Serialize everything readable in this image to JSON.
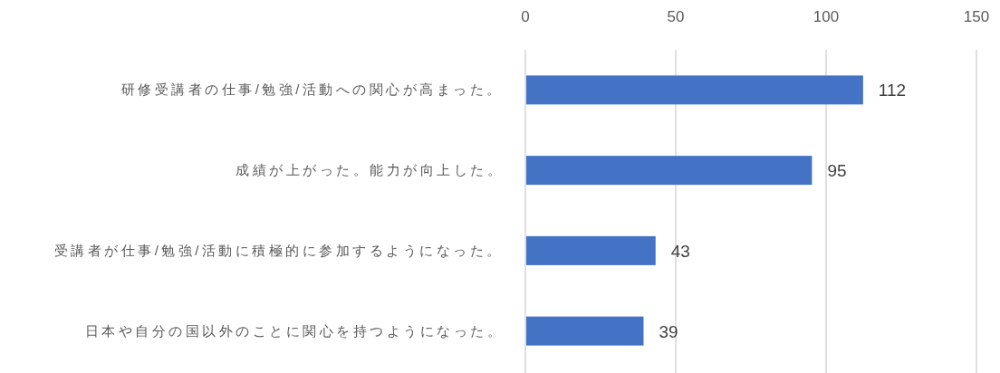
{
  "chart_data": {
    "type": "bar",
    "orientation": "horizontal",
    "categories": [
      "研修受講者の仕事/勉強/活動への関心が高まった。",
      "成績が上がった。能力が向上した。",
      "受講者が仕事/勉強/活動に積極的に参加するようになった。",
      "日本や自分の国以外のことに関心を持つようになった。"
    ],
    "values": [
      112,
      95,
      43,
      39
    ],
    "color": "#4472c4",
    "xlim": [
      0,
      150
    ],
    "xticks": [
      0,
      50,
      100,
      150
    ],
    "grid": "x",
    "data_labels": true
  }
}
